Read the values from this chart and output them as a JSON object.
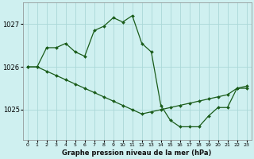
{
  "title": "Graphe pression niveau de la mer (hPa)",
  "background_color": "#cff0f0",
  "grid_color": "#aad8d8",
  "line_color": "#1a5c1a",
  "marker_color": "#1a5c1a",
  "xlim": [
    -0.5,
    23.5
  ],
  "ylim": [
    1024.3,
    1027.5
  ],
  "yticks": [
    1025,
    1026,
    1027
  ],
  "xticks": [
    0,
    1,
    2,
    3,
    4,
    5,
    6,
    7,
    8,
    9,
    10,
    11,
    12,
    13,
    14,
    15,
    16,
    17,
    18,
    19,
    20,
    21,
    22,
    23
  ],
  "series1_x": [
    0,
    1,
    2,
    3,
    4,
    5,
    6,
    7,
    8,
    9,
    10,
    11,
    12,
    13,
    14,
    15,
    16,
    17,
    18,
    19,
    20,
    21,
    22,
    23
  ],
  "series1_y": [
    1026.0,
    1026.0,
    1026.45,
    1026.45,
    1026.55,
    1026.35,
    1026.25,
    1026.85,
    1026.95,
    1027.15,
    1027.05,
    1027.2,
    1026.55,
    1026.35,
    1025.1,
    1024.75,
    1024.6,
    1024.6,
    1024.6,
    1024.85,
    1025.05,
    1025.05,
    1025.5,
    1025.5
  ],
  "series2_x": [
    0,
    1,
    2,
    3,
    4,
    5,
    6,
    7,
    8,
    9,
    10,
    11,
    12,
    13,
    14,
    15,
    16,
    17,
    18,
    19,
    20,
    21,
    22,
    23
  ],
  "series2_y": [
    1026.0,
    1026.0,
    1025.9,
    1025.8,
    1025.7,
    1025.6,
    1025.5,
    1025.4,
    1025.3,
    1025.2,
    1025.1,
    1025.0,
    1024.9,
    1024.95,
    1025.0,
    1025.05,
    1025.1,
    1025.15,
    1025.2,
    1025.25,
    1025.3,
    1025.35,
    1025.5,
    1025.55
  ]
}
